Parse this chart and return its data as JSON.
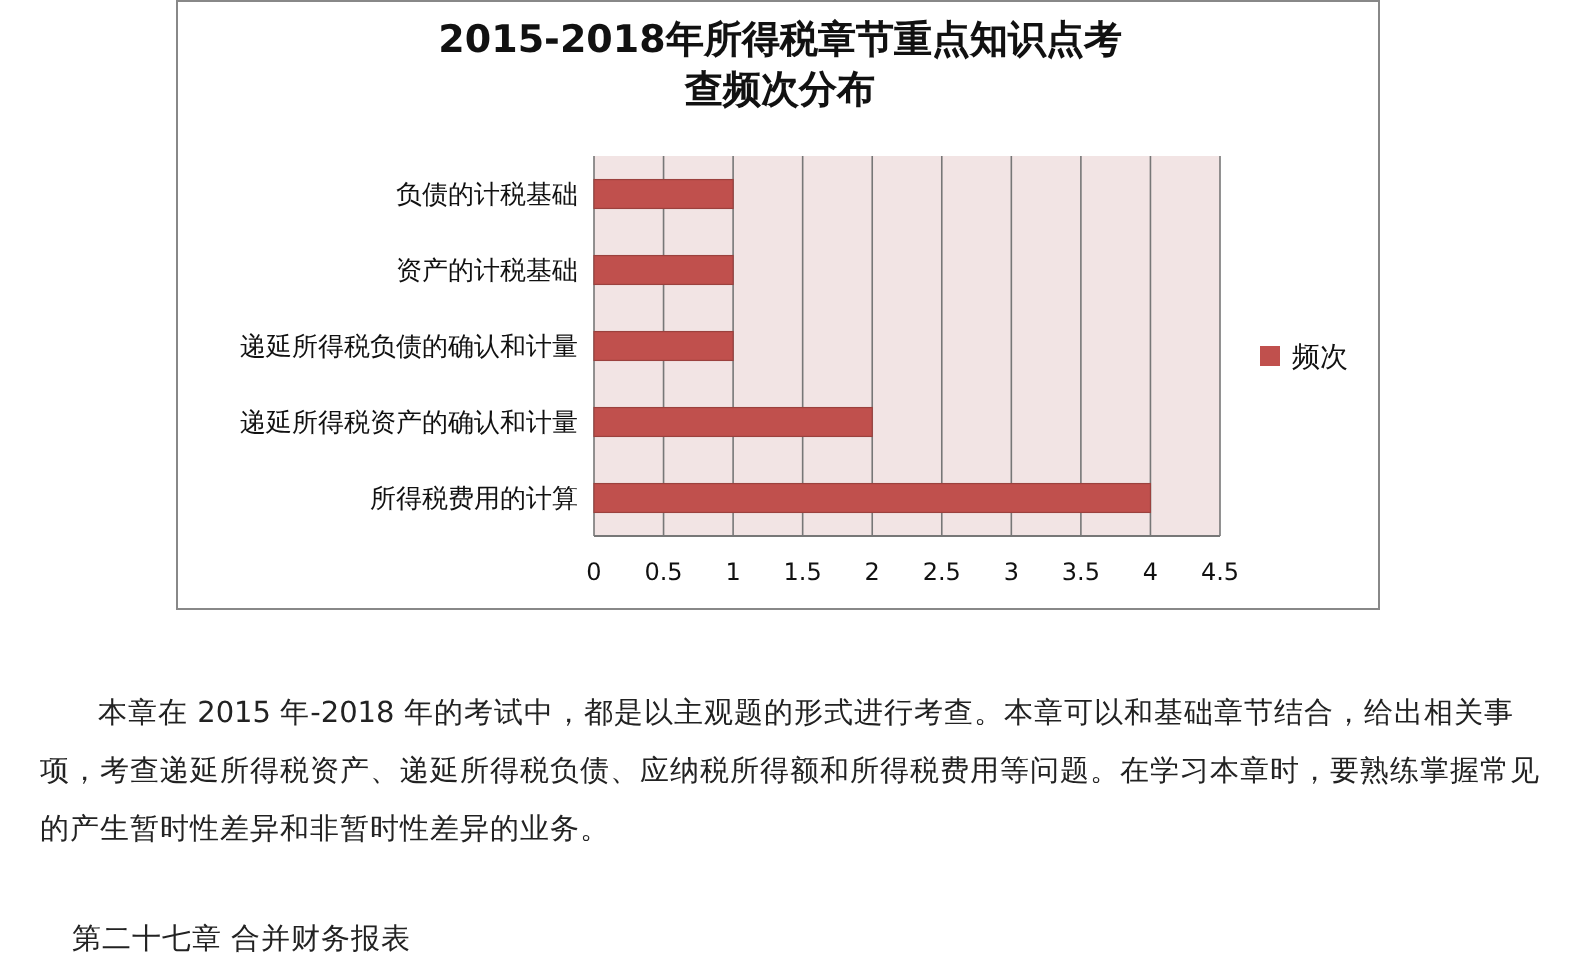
{
  "chart_data": {
    "type": "bar",
    "orientation": "horizontal",
    "title": "2015-2018年所得税章节重点知识点考查频次分布",
    "categories": [
      "负债的计税基础",
      "资产的计税基础",
      "递延所得税负债的确认和计量",
      "递延所得税资产的确认和计量",
      "所得税费用的计算"
    ],
    "series": [
      {
        "name": "频次",
        "color": "#c0504d",
        "values": [
          1,
          1,
          1,
          2,
          4
        ]
      }
    ],
    "xlim": [
      0,
      4.5
    ],
    "xticks": [
      0,
      0.5,
      1,
      1.5,
      2,
      2.5,
      3,
      3.5,
      4,
      4.5
    ],
    "grid": "x",
    "legend": "right",
    "annotations": [
      "本章在 2015 年-2018 年的考试中，都是以主观题的形式进行考查。本章可以和基础章节结合，给出相关事项，考查递延所得税资产、递延所得税负债、应纳税所得额和所得税费用等问题。在学习本章时，要熟练掌握常见的产生暂时性差异和非暂时性差异的业务。",
      "第二十七章 合并财务报表"
    ]
  }
}
